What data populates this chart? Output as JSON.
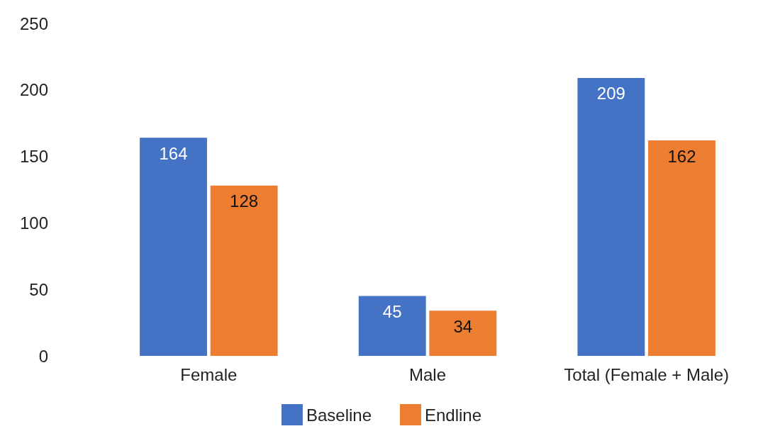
{
  "chart_data": {
    "type": "bar",
    "categories": [
      "Female",
      "Male",
      "Total (Female + Male)"
    ],
    "series": [
      {
        "name": "Baseline",
        "color": "#4472c4",
        "values": [
          164,
          45,
          209
        ]
      },
      {
        "name": "Endline",
        "color": "#ed7d31",
        "values": [
          128,
          34,
          162
        ]
      }
    ],
    "ylim": [
      0,
      250
    ],
    "yticks": [
      0,
      50,
      100,
      150,
      200,
      250
    ],
    "grid": false,
    "legend": "bottom",
    "data_labels": true
  }
}
